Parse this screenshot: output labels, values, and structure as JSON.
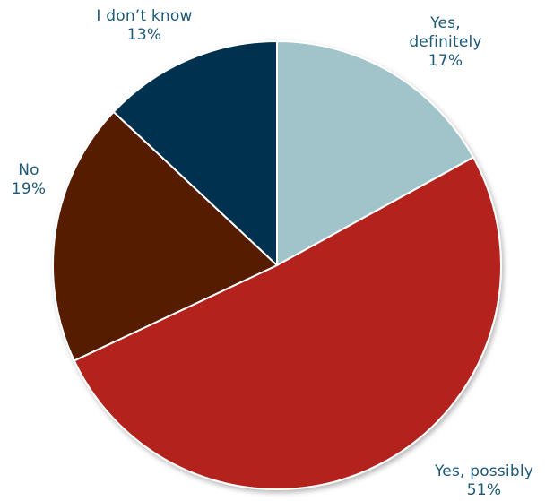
{
  "chart_data": {
    "type": "pie",
    "slices": [
      {
        "label_lines": [
          "Yes,",
          "definitely"
        ],
        "value": 17,
        "value_label": "17%",
        "color": "#a0c4c9"
      },
      {
        "label_lines": [
          "Yes, possibly"
        ],
        "value": 51,
        "value_label": "51%",
        "color": "#b3231a"
      },
      {
        "label_lines": [
          "No"
        ],
        "value": 19,
        "value_label": "19%",
        "color": "#561a00"
      },
      {
        "label_lines": [
          "I don’t know"
        ],
        "value": 13,
        "value_label": "13%",
        "color": "#02334f"
      }
    ],
    "start": "12 o'clock",
    "direction": "clockwise",
    "label_color": "#1e5a78"
  }
}
